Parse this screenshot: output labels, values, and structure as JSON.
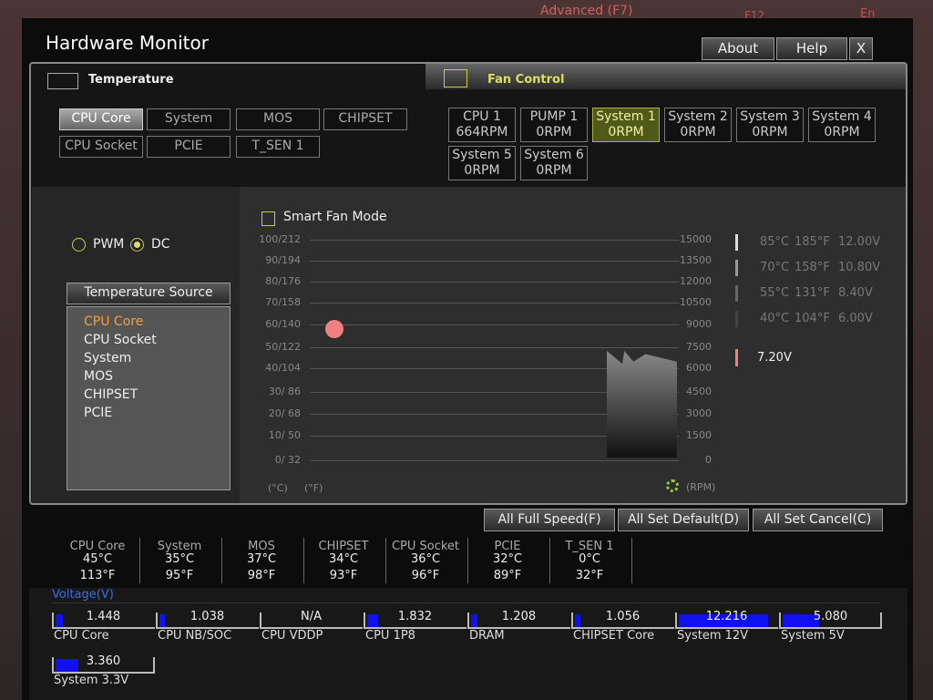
{
  "background": {
    "tab": "Advanced (F7)",
    "key": "F12",
    "lang": "En"
  },
  "window": {
    "title": "Hardware Monitor",
    "buttons": [
      "About",
      "Help",
      "X"
    ]
  },
  "tabs": {
    "temperature": "Temperature",
    "fan_control": "Fan Control"
  },
  "temperature_sensors": [
    "CPU Core",
    "System",
    "MOS",
    "CHIPSET",
    "CPU Socket",
    "PCIE",
    "T_SEN 1"
  ],
  "fans": [
    {
      "name": "CPU 1",
      "speed": "664RPM"
    },
    {
      "name": "PUMP 1",
      "speed": "0RPM"
    },
    {
      "name": "System 1",
      "speed": "0RPM"
    },
    {
      "name": "System 2",
      "speed": "0RPM"
    },
    {
      "name": "System 3",
      "speed": "0RPM"
    },
    {
      "name": "System 4",
      "speed": "0RPM"
    },
    {
      "name": "System 5",
      "speed": "0RPM"
    },
    {
      "name": "System 6",
      "speed": "0RPM"
    }
  ],
  "mode": {
    "pwm": "PWM",
    "dc": "DC"
  },
  "temperature_source": {
    "title": "Temperature Source",
    "items": [
      "CPU Core",
      "CPU Socket",
      "System",
      "MOS",
      "CHIPSET",
      "PCIE"
    ]
  },
  "smart_fan_mode": "Smart Fan Mode",
  "graph": {
    "left_ticks": [
      "100/212",
      "90/194",
      "80/176",
      "70/158",
      "60/140",
      "50/122",
      "40/104",
      "30/ 86",
      "20/ 68",
      "10/ 50",
      "0/ 32"
    ],
    "right_ticks": [
      "15000",
      "13500",
      "12000",
      "10500",
      "9000",
      "7500",
      "6000",
      "4500",
      "3000",
      "1500",
      "0"
    ],
    "unit_c": "(°C)",
    "unit_f": "(°F)",
    "unit_rpm": "(RPM)"
  },
  "fan_levels": [
    {
      "c": "85°C",
      "f": "185°F",
      "v": "12.00V"
    },
    {
      "c": "70°C",
      "f": "158°F",
      "v": "10.80V"
    },
    {
      "c": "55°C",
      "f": "131°F",
      "v": "8.40V"
    },
    {
      "c": "40°C",
      "f": "104°F",
      "v": "6.00V"
    }
  ],
  "current_voltage": "7.20V",
  "actions": [
    "All Full Speed(F)",
    "All Set Default(D)",
    "All Set Cancel(C)"
  ],
  "readings": [
    {
      "name": "CPU Core",
      "c": "45°C",
      "f": "113°F"
    },
    {
      "name": "System",
      "c": "35°C",
      "f": "95°F"
    },
    {
      "name": "MOS",
      "c": "37°C",
      "f": "98°F"
    },
    {
      "name": "CHIPSET",
      "c": "34°C",
      "f": "93°F"
    },
    {
      "name": "CPU Socket",
      "c": "36°C",
      "f": "96°F"
    },
    {
      "name": "PCIE",
      "c": "32°C",
      "f": "89°F"
    },
    {
      "name": "T_SEN 1",
      "c": "0°C",
      "f": "32°F"
    }
  ],
  "voltage": {
    "title": "Voltage(V)",
    "items": [
      {
        "name": "CPU Core",
        "value": "1.448"
      },
      {
        "name": "CPU NB/SOC",
        "value": "1.038"
      },
      {
        "name": "CPU VDDP",
        "value": "N/A"
      },
      {
        "name": "CPU 1P8",
        "value": "1.832"
      },
      {
        "name": "DRAM",
        "value": "1.208"
      },
      {
        "name": "CHIPSET Core",
        "value": "1.056"
      },
      {
        "name": "System 12V",
        "value": "12.216"
      },
      {
        "name": "System 5V",
        "value": "5.080"
      },
      {
        "name": "System 3.3V",
        "value": "3.360"
      }
    ]
  }
}
